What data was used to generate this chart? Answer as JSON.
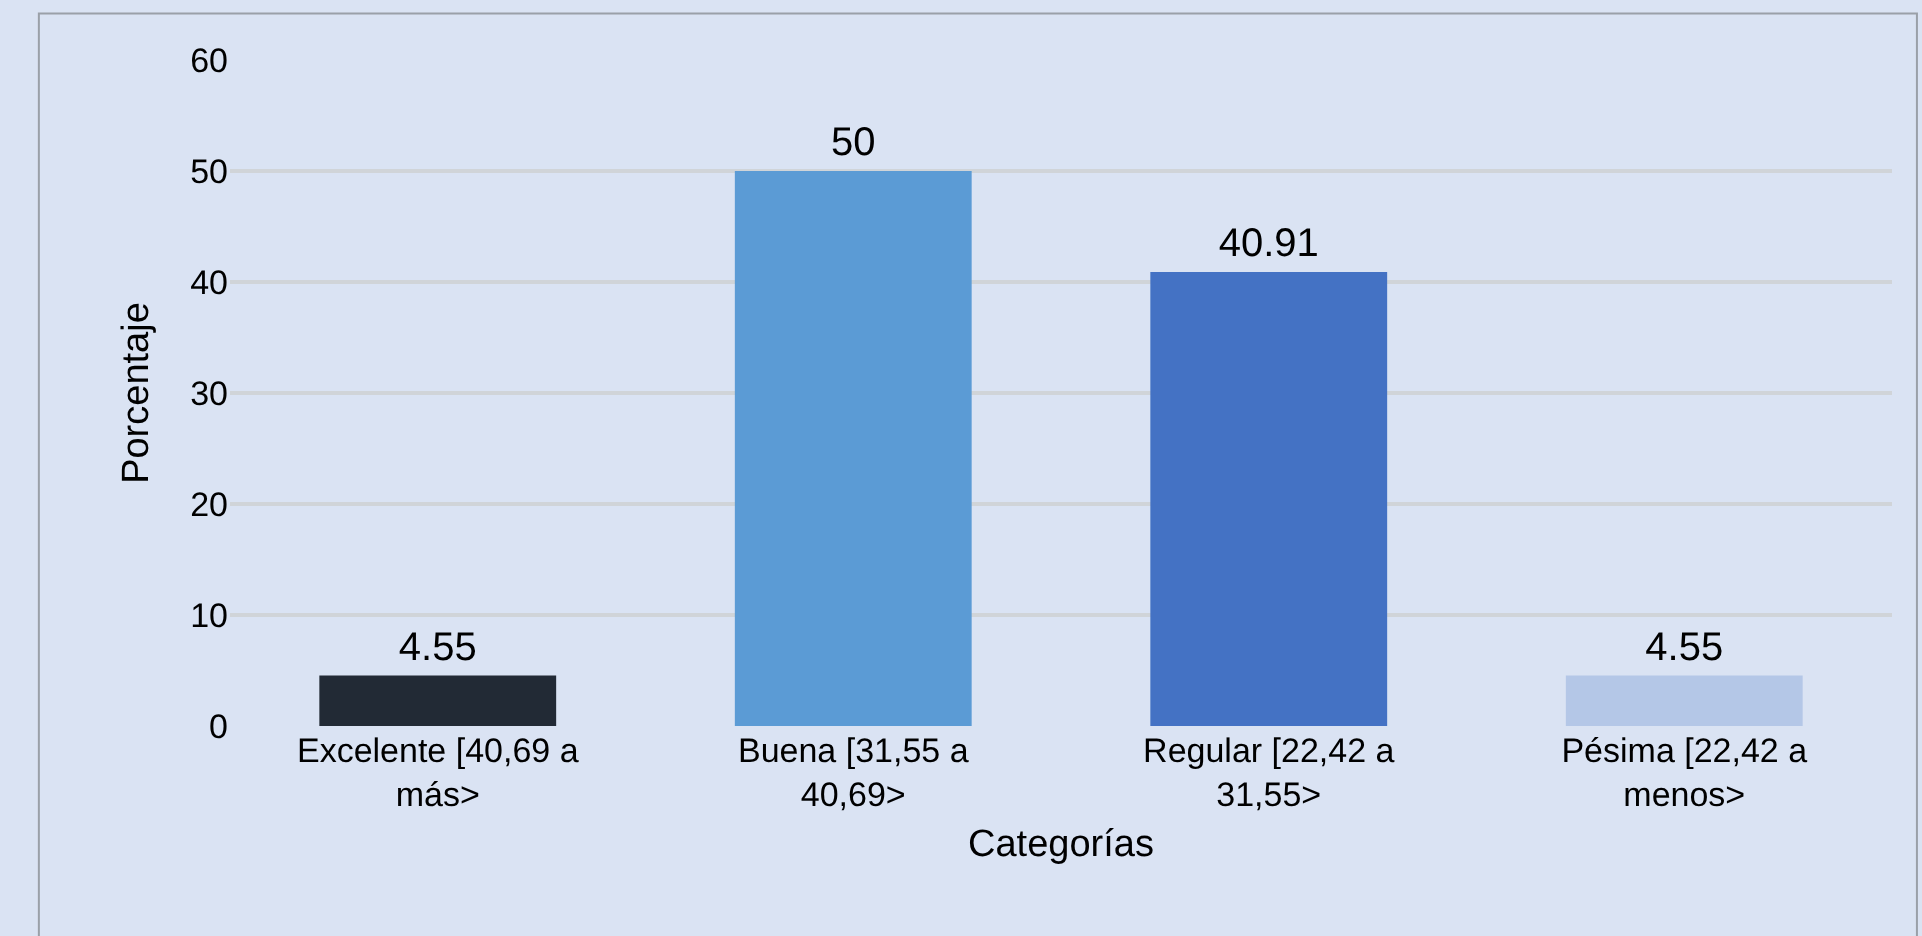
{
  "chart_data": {
    "type": "bar",
    "xlabel": "Categorías",
    "ylabel": "Porcentaje",
    "categories": [
      "Excelente [40,69 a más>",
      "Buena [31,55 a 40,69>",
      "Regular [22,42 a 31,55>",
      "Pésima [22,42 a menos>"
    ],
    "values": [
      4.55,
      50,
      40.91,
      4.55
    ],
    "colors": [
      "#222a35",
      "#5b9bd5",
      "#4472c4",
      "#b4c7e7"
    ],
    "ylim": [
      0,
      60
    ],
    "yticks": [
      0,
      10,
      20,
      30,
      40,
      50,
      60
    ],
    "grid": true,
    "data_labels": true
  }
}
